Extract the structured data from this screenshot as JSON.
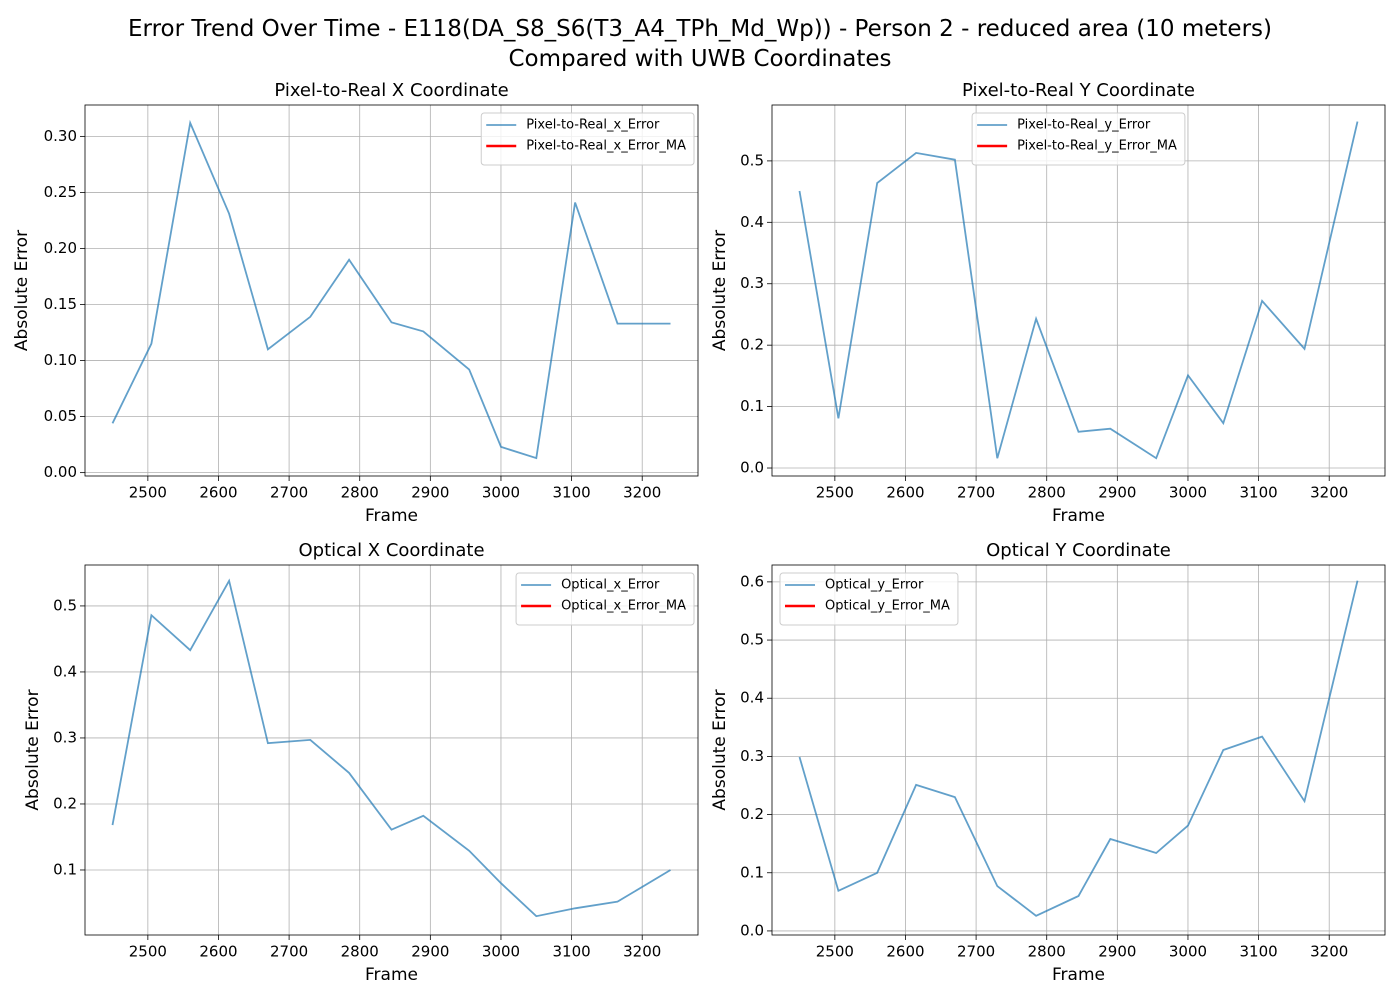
{
  "title": "Error Trend Over Time - E118(DA_S8_S6(T3_A4_TPh_Md_Wp)) - Person 2 - reduced area (10 meters)\nCompared with UWB Coordinates",
  "chart_data": [
    {
      "type": "line",
      "title": "Pixel-to-Real X Coordinate",
      "xlabel": "Frame",
      "ylabel": "Absolute Error",
      "x": [
        2450,
        2505,
        2560,
        2615,
        2670,
        2730,
        2785,
        2845,
        2890,
        2955,
        3000,
        3050,
        3105,
        3165,
        3240
      ],
      "series": [
        {
          "name": "Pixel-to-Real_x_Error",
          "color": "#1f77b4",
          "values": [
            0.044,
            0.115,
            0.312,
            0.231,
            0.11,
            0.139,
            0.19,
            0.134,
            0.126,
            0.092,
            0.023,
            0.013,
            0.241,
            0.133,
            0.133
          ]
        },
        {
          "name": "Pixel-to-Real_x_Error_MA",
          "color": "#ff0000",
          "values": [
            null,
            null,
            null,
            null,
            null,
            null,
            null,
            null,
            null,
            null,
            null,
            null,
            null,
            null,
            null
          ]
        }
      ],
      "xlim": [
        2411,
        3279
      ],
      "ylim": [
        -0.003,
        0.328
      ],
      "xticks": [
        2500,
        2600,
        2700,
        2800,
        2900,
        3000,
        3100,
        3200
      ],
      "yticks": [
        {
          "value": 0,
          "label": "0.00"
        },
        0.05,
        {
          "value": 0.1,
          "label": "0.10"
        },
        0.15,
        {
          "value": 0.2,
          "label": "0.20"
        },
        0.25,
        {
          "value": 0.3,
          "label": "0.30"
        }
      ],
      "grid": true,
      "legend": "upper right"
    },
    {
      "type": "line",
      "title": "Pixel-to-Real Y Coordinate",
      "xlabel": "Frame",
      "ylabel": "Absolute Error",
      "x": [
        2450,
        2505,
        2560,
        2615,
        2670,
        2730,
        2785,
        2845,
        2890,
        2955,
        3000,
        3050,
        3105,
        3165,
        3240
      ],
      "series": [
        {
          "name": "Pixel-to-Real_y_Error",
          "color": "#1f77b4",
          "values": [
            0.451,
            0.081,
            0.464,
            0.513,
            0.502,
            0.016,
            0.243,
            0.059,
            0.064,
            0.016,
            0.151,
            0.073,
            0.272,
            0.194,
            0.564
          ]
        },
        {
          "name": "Pixel-to-Real_y_Error_MA",
          "color": "#ff0000",
          "values": [
            null,
            null,
            null,
            null,
            null,
            null,
            null,
            null,
            null,
            null,
            null,
            null,
            null,
            null,
            null
          ]
        }
      ],
      "xlim": [
        2411,
        3279
      ],
      "ylim": [
        -0.013,
        0.591
      ],
      "xticks": [
        2500,
        2600,
        2700,
        2800,
        2900,
        3000,
        3100,
        3200
      ],
      "yticks": [
        {
          "value": 0,
          "label": "0.0"
        },
        0.1,
        0.2,
        0.3,
        0.4,
        0.5
      ],
      "grid": true,
      "legend": "upper center"
    },
    {
      "type": "line",
      "title": "Optical X Coordinate",
      "xlabel": "Frame",
      "ylabel": "Absolute Error",
      "x": [
        2450,
        2505,
        2560,
        2615,
        2670,
        2730,
        2785,
        2845,
        2890,
        2955,
        3000,
        3050,
        3105,
        3165,
        3240
      ],
      "series": [
        {
          "name": "Optical_x_Error",
          "color": "#1f77b4",
          "values": [
            0.168,
            0.486,
            0.433,
            0.538,
            0.292,
            0.297,
            0.247,
            0.161,
            0.182,
            0.129,
            0.08,
            0.03,
            0.042,
            0.052,
            0.1
          ]
        },
        {
          "name": "Optical_x_Error_MA",
          "color": "#ff0000",
          "values": [
            null,
            null,
            null,
            null,
            null,
            null,
            null,
            null,
            null,
            null,
            null,
            null,
            null,
            null,
            null
          ]
        }
      ],
      "xlim": [
        2411,
        3279
      ],
      "ylim": [
        0.0015,
        0.562
      ],
      "xticks": [
        2500,
        2600,
        2700,
        2800,
        2900,
        3000,
        3100,
        3200
      ],
      "yticks": [
        0.1,
        0.2,
        0.3,
        0.4,
        0.5
      ],
      "grid": true,
      "legend": "upper right"
    },
    {
      "type": "line",
      "title": "Optical Y Coordinate",
      "xlabel": "Frame",
      "ylabel": "Absolute Error",
      "x": [
        2450,
        2505,
        2560,
        2615,
        2670,
        2730,
        2785,
        2845,
        2890,
        2955,
        3000,
        3050,
        3105,
        3165,
        3240
      ],
      "series": [
        {
          "name": "Optical_y_Error",
          "color": "#1f77b4",
          "values": [
            0.299,
            0.069,
            0.1,
            0.251,
            0.23,
            0.077,
            0.026,
            0.06,
            0.158,
            0.134,
            0.181,
            0.311,
            0.334,
            0.223,
            0.602
          ]
        },
        {
          "name": "Optical_y_Error_MA",
          "color": "#ff0000",
          "values": [
            null,
            null,
            null,
            null,
            null,
            null,
            null,
            null,
            null,
            null,
            null,
            null,
            null,
            null,
            null
          ]
        }
      ],
      "xlim": [
        2411,
        3279
      ],
      "ylim": [
        -0.007,
        0.629
      ],
      "xticks": [
        2500,
        2600,
        2700,
        2800,
        2900,
        3000,
        3100,
        3200
      ],
      "yticks": [
        {
          "value": 0,
          "label": "0.0"
        },
        0.1,
        0.2,
        0.3,
        0.4,
        0.5,
        0.6
      ],
      "grid": true,
      "legend": "upper left"
    }
  ]
}
